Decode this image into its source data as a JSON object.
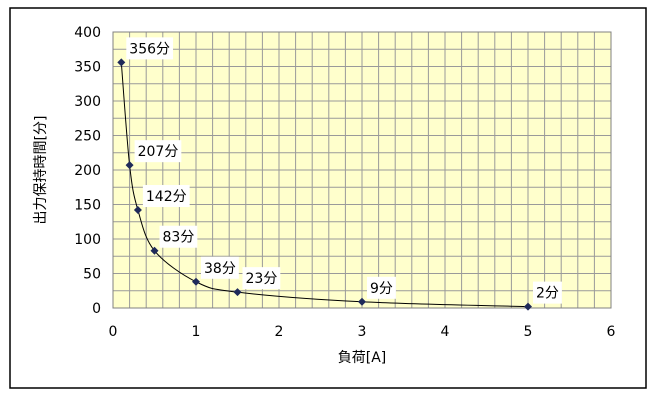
{
  "chart_data": {
    "type": "scatter",
    "title": "",
    "xlabel": "負荷[A]",
    "ylabel": "出力保持時間[分]",
    "xlim": [
      0,
      6
    ],
    "ylim": [
      0,
      400
    ],
    "x_ticks": [
      "0",
      "1",
      "2",
      "3",
      "4",
      "5",
      "6"
    ],
    "y_ticks": [
      "0",
      "50",
      "100",
      "150",
      "200",
      "250",
      "300",
      "350",
      "400"
    ],
    "grid": true,
    "legend": "none",
    "colors": {
      "plot_background": "#ffffcc",
      "grid": "#9a9a9a",
      "marker": "#1f2a5a",
      "line": "#000000",
      "label_background": "#ffffff"
    },
    "points": [
      {
        "x": 0.1,
        "y": 356,
        "label": "356分"
      },
      {
        "x": 0.2,
        "y": 207,
        "label": "207分"
      },
      {
        "x": 0.3,
        "y": 142,
        "label": "142分"
      },
      {
        "x": 0.5,
        "y": 83,
        "label": "83分"
      },
      {
        "x": 1.0,
        "y": 38,
        "label": "38分"
      },
      {
        "x": 1.5,
        "y": 23,
        "label": "23分"
      },
      {
        "x": 3.0,
        "y": 9,
        "label": "9分"
      },
      {
        "x": 5.0,
        "y": 2,
        "label": "2分"
      }
    ]
  }
}
